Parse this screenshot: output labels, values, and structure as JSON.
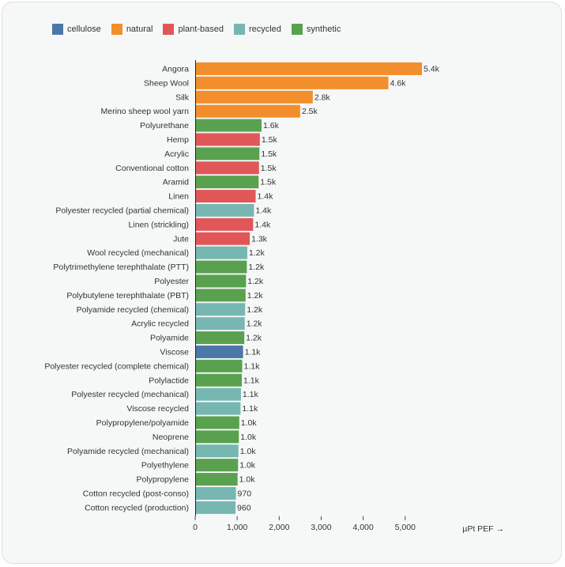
{
  "legend": {
    "position": "top-left",
    "items": [
      {
        "label": "cellulose",
        "color": "#4c78a8"
      },
      {
        "label": "natural",
        "color": "#f28e2b"
      },
      {
        "label": "plant-based",
        "color": "#e15759"
      },
      {
        "label": "recycled",
        "color": "#76b7b2"
      },
      {
        "label": "synthetic",
        "color": "#59a14f"
      }
    ]
  },
  "chart_data": {
    "type": "bar",
    "orientation": "horizontal",
    "xlabel": "µPt PEF →",
    "xlim": [
      0,
      5400
    ],
    "xticks": [
      0,
      1000,
      2000,
      3000,
      4000,
      5000
    ],
    "xtick_labels": [
      "0",
      "1,000",
      "2,000",
      "3,000",
      "4,000",
      "5,000"
    ],
    "grid": false,
    "categories": [
      "Angora",
      "Sheep Wool",
      "Silk",
      "Merino sheep wool yarn",
      "Polyurethane",
      "Hemp",
      "Acrylic",
      "Conventional cotton",
      "Aramid",
      "Linen",
      "Polyester recycled (partial chemical)",
      "Linen (strickling)",
      "Jute",
      "Wool recycled (mechanical)",
      "Polytrimethylene terephthalate (PTT)",
      "Polyester",
      "Polybutylene terephthalate (PBT)",
      "Polyamide recycled (chemical)",
      "Acrylic recycled",
      "Polyamide",
      "Viscose",
      "Polyester recycled (complete chemical)",
      "Polylactide",
      "Polyester recycled (mechanical)",
      "Viscose recycled",
      "Polypropylene/polyamide",
      "Neoprene",
      "Polyamide recycled (mechanical)",
      "Polyethylene",
      "Polypropylene",
      "Cotton recycled (post-conso)",
      "Cotton recycled (production)"
    ],
    "values": [
      5400,
      4600,
      2800,
      2500,
      1580,
      1540,
      1530,
      1520,
      1510,
      1440,
      1400,
      1380,
      1300,
      1240,
      1230,
      1210,
      1200,
      1190,
      1180,
      1170,
      1140,
      1120,
      1110,
      1090,
      1080,
      1050,
      1040,
      1030,
      1020,
      1010,
      970,
      960
    ],
    "data_labels": [
      "5.4k",
      "4.6k",
      "2.8k",
      "2.5k",
      "1.6k",
      "1.5k",
      "1.5k",
      "1.5k",
      "1.5k",
      "1.4k",
      "1.4k",
      "1.4k",
      "1.3k",
      "1.2k",
      "1.2k",
      "1.2k",
      "1.2k",
      "1.2k",
      "1.2k",
      "1.2k",
      "1.1k",
      "1.1k",
      "1.1k",
      "1.1k",
      "1.1k",
      "1.0k",
      "1.0k",
      "1.0k",
      "1.0k",
      "1.0k",
      "970",
      "960"
    ],
    "groups": [
      "natural",
      "natural",
      "natural",
      "natural",
      "synthetic",
      "plant-based",
      "synthetic",
      "plant-based",
      "synthetic",
      "plant-based",
      "recycled",
      "plant-based",
      "plant-based",
      "recycled",
      "synthetic",
      "synthetic",
      "synthetic",
      "recycled",
      "recycled",
      "synthetic",
      "cellulose",
      "synthetic",
      "synthetic",
      "recycled",
      "recycled",
      "synthetic",
      "synthetic",
      "recycled",
      "synthetic",
      "synthetic",
      "recycled",
      "recycled"
    ]
  }
}
